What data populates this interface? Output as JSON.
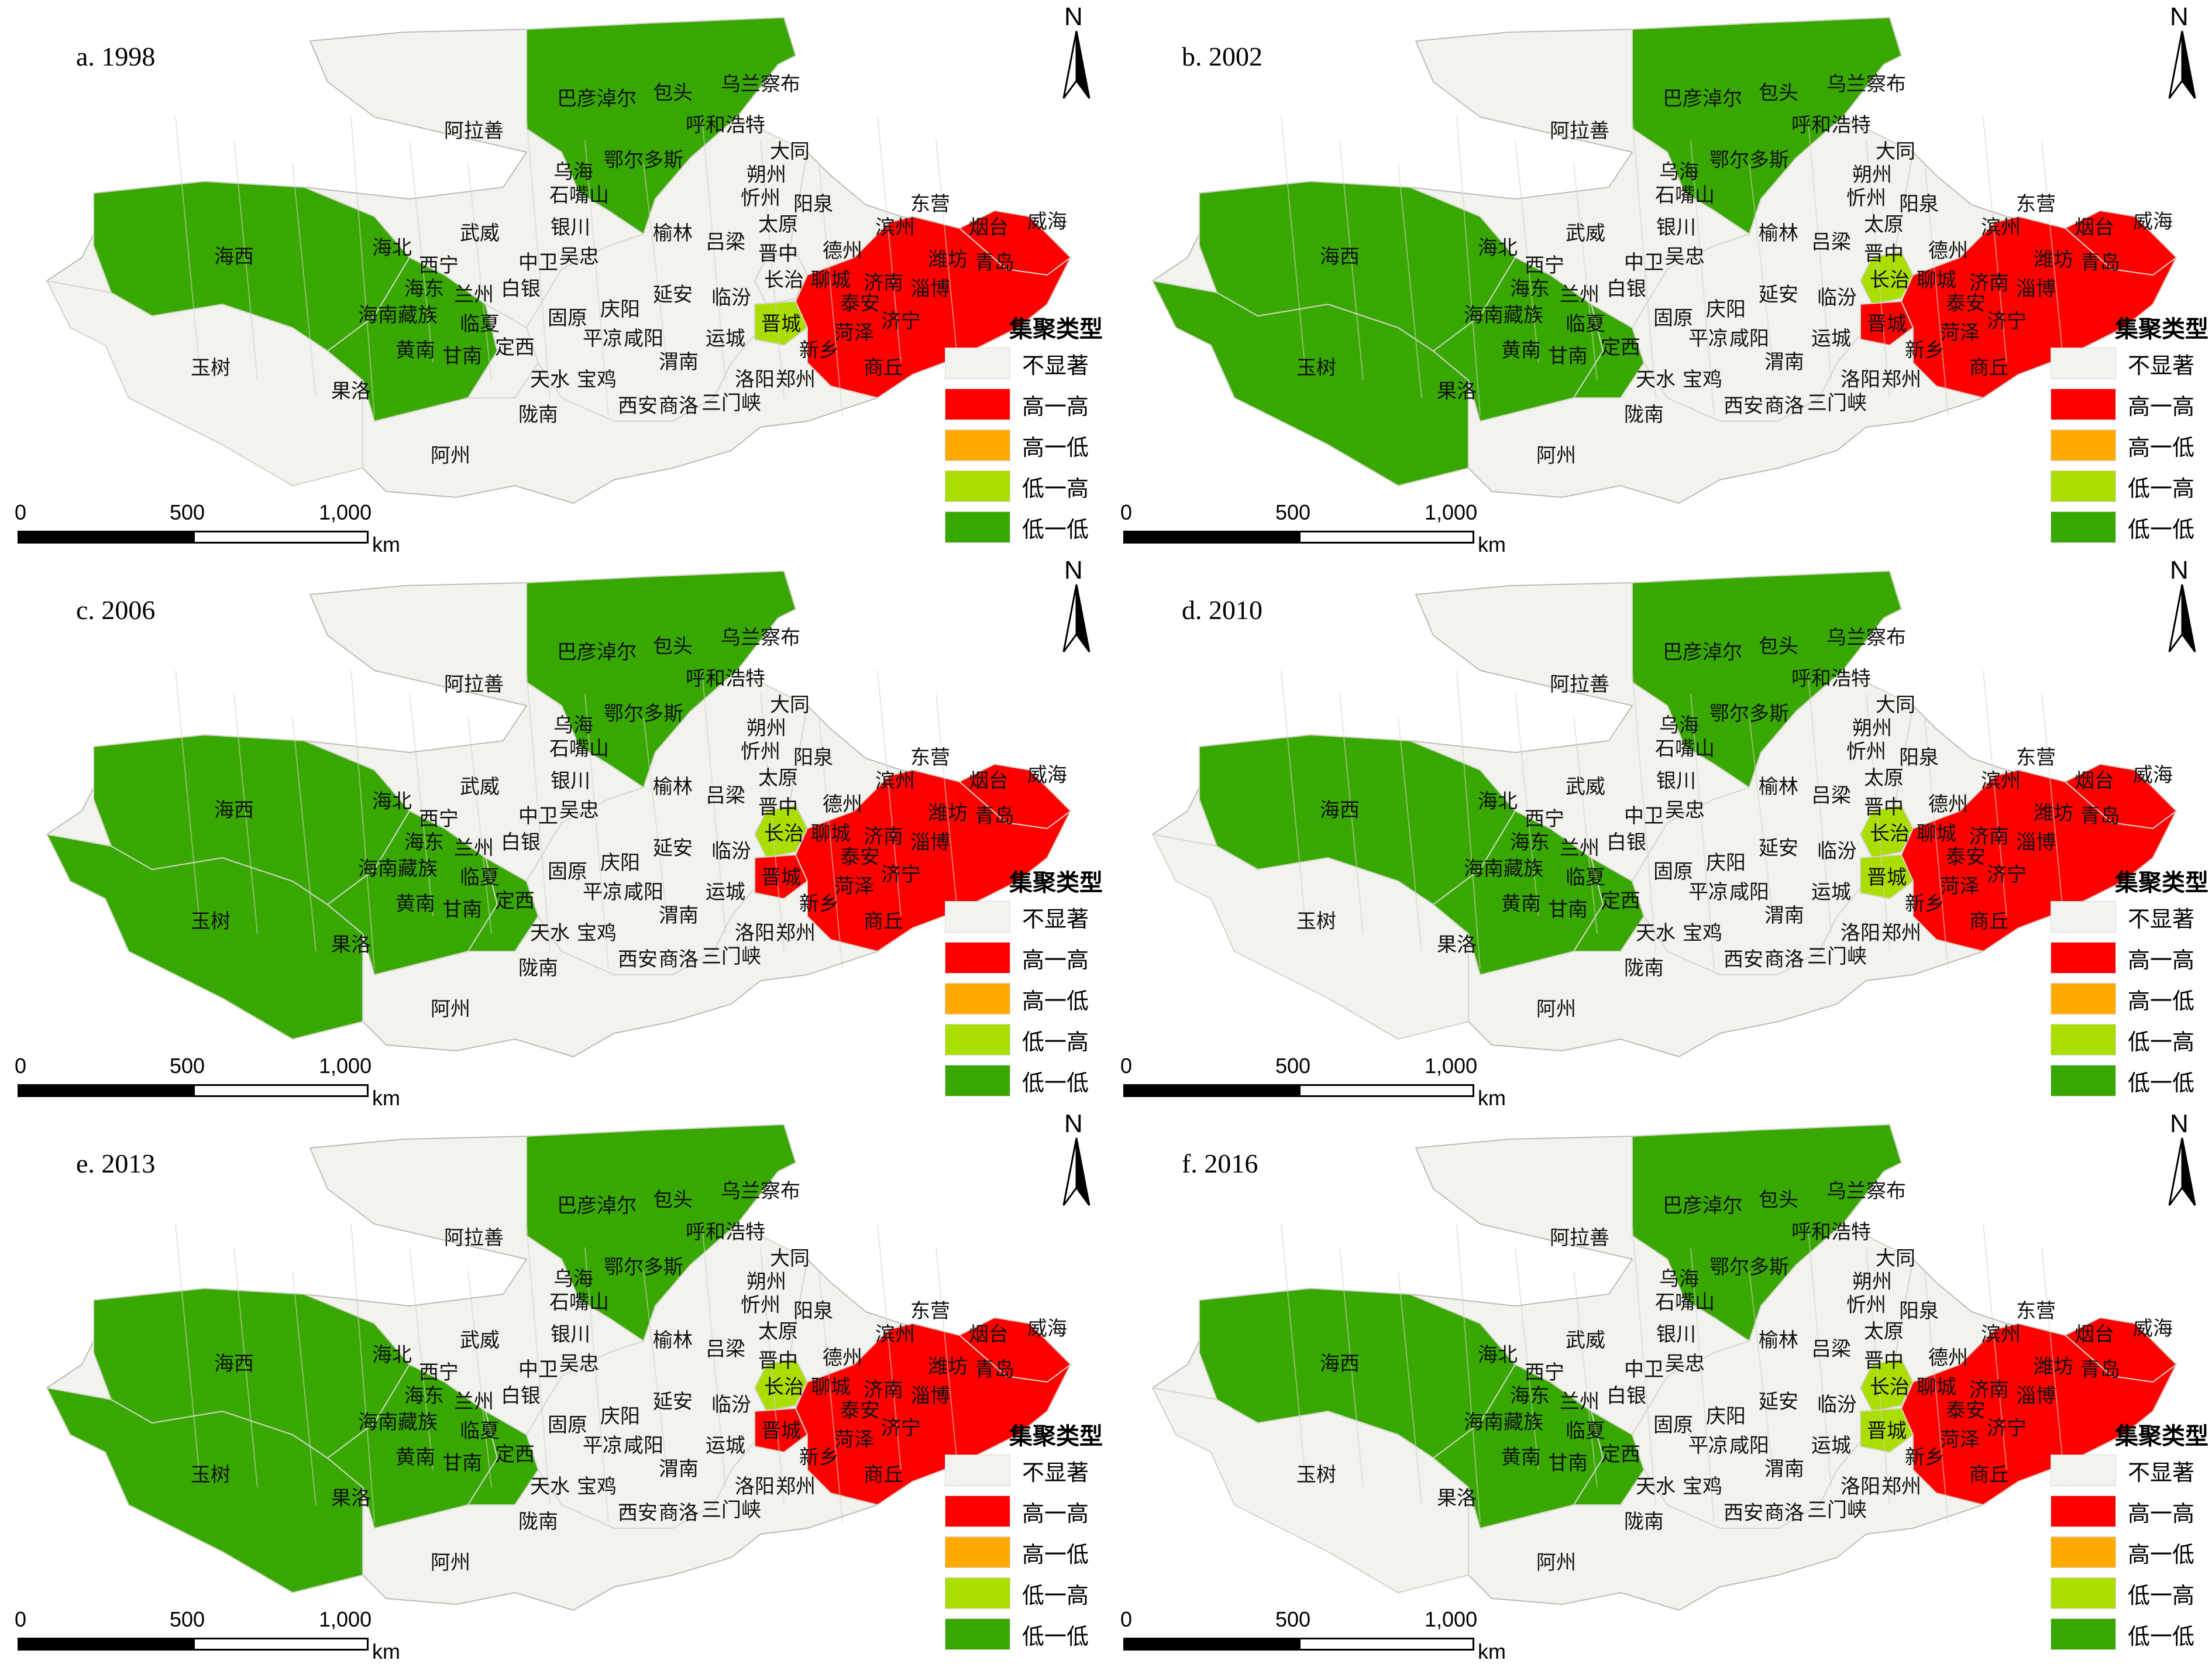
{
  "legend": {
    "title": "集聚类型",
    "items": [
      {
        "label": "不显著",
        "color": "#f2f2ee"
      },
      {
        "label": "高一高",
        "color": "#ff0000"
      },
      {
        "label": "高一低",
        "color": "#ffaa00"
      },
      {
        "label": "低一高",
        "color": "#aadd00"
      },
      {
        "label": "低一低",
        "color": "#38a800"
      }
    ]
  },
  "north_label": "N",
  "scalebar": {
    "ticks": [
      "0",
      "500",
      "1,000"
    ],
    "unit": "km"
  },
  "panels": [
    {
      "title": "a. 1998",
      "regions": {
        "haixi_west": "low-low",
        "yushu": "ns",
        "guoluo_block": "low-low",
        "hetao": "low-low",
        "jincheng": "low-high",
        "changzhi": "ns",
        "central": "ns",
        "shandong": "high-high",
        "gannan_block": "ns"
      }
    },
    {
      "title": "b. 2002",
      "regions": {
        "haixi_west": "low-low",
        "yushu": "low-low",
        "guoluo_block": "low-low",
        "hetao": "low-low",
        "jincheng": "high-high",
        "changzhi": "low-high",
        "central": "ns",
        "shandong": "high-high",
        "gannan_block": "low-low"
      }
    },
    {
      "title": "c. 2006",
      "regions": {
        "haixi_west": "low-low",
        "yushu": "low-low",
        "guoluo_block": "low-low",
        "hetao": "low-low",
        "jincheng": "high-high",
        "changzhi": "low-high",
        "central": "ns",
        "shandong": "high-high",
        "gannan_block": "low-low"
      }
    },
    {
      "title": "d. 2010",
      "regions": {
        "haixi_west": "low-low",
        "yushu": "ns",
        "guoluo_block": "low-low",
        "hetao": "low-low",
        "jincheng": "low-high",
        "changzhi": "low-high",
        "central": "ns",
        "shandong": "high-high",
        "gannan_block": "low-low"
      }
    },
    {
      "title": "e. 2013",
      "regions": {
        "haixi_west": "low-low",
        "yushu": "low-low",
        "guoluo_block": "low-low",
        "hetao": "low-low",
        "jincheng": "high-high",
        "changzhi": "low-high",
        "central": "ns",
        "shandong": "high-high",
        "gannan_block": "low-low"
      }
    },
    {
      "title": "f. 2016",
      "regions": {
        "haixi_west": "low-low",
        "yushu": "ns",
        "guoluo_block": "low-low",
        "hetao": "low-low",
        "jincheng": "low-high",
        "changzhi": "low-high",
        "central": "ns",
        "shandong": "high-high",
        "gannan_block": "low-low"
      }
    }
  ],
  "place_names": [
    "阿拉善",
    "巴彦淖尔",
    "包头",
    "乌兰察布",
    "呼和浩特",
    "鄂尔多斯",
    "乌海",
    "石嘴山",
    "银川",
    "大同",
    "朔州",
    "忻州",
    "阳泉",
    "太原",
    "吕梁",
    "晋中",
    "榆林",
    "武威",
    "海北",
    "西宁",
    "海东",
    "兰州",
    "白银",
    "中卫",
    "吴忠",
    "固原",
    "海西",
    "海南藏族",
    "临夏",
    "定西",
    "黄南",
    "甘南",
    "庆阳",
    "平凉",
    "咸阳",
    "延安",
    "临汾",
    "长治",
    "晋城",
    "运城",
    "渭南",
    "天水",
    "宝鸡",
    "陇南",
    "西安",
    "商洛",
    "三门峡",
    "洛阳",
    "郑州",
    "新乡",
    "商丘",
    "菏泽",
    "济宁",
    "泰安",
    "聊城",
    "济南",
    "淄博",
    "德州",
    "滨州",
    "东营",
    "烟台",
    "威海",
    "潍坊",
    "青岛",
    "果洛",
    "玉树",
    "阿州"
  ]
}
